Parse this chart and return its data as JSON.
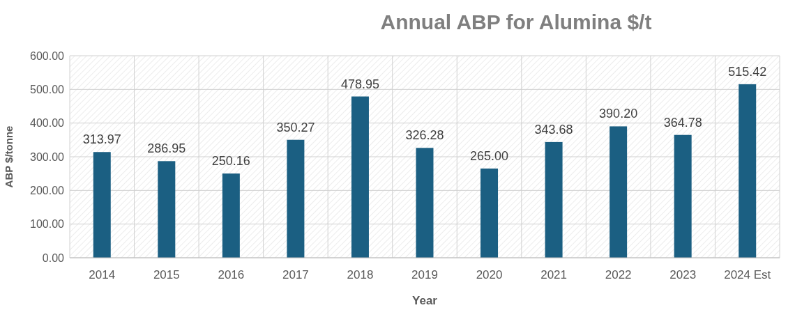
{
  "chart_data": {
    "type": "bar",
    "title": "Annual ABP for Alumina $/t",
    "xlabel": "Year",
    "ylabel": "ABP $/tonne",
    "categories": [
      "2014",
      "2015",
      "2016",
      "2017",
      "2018",
      "2019",
      "2020",
      "2021",
      "2022",
      "2023",
      "2024 Est"
    ],
    "values": [
      313.97,
      286.95,
      250.16,
      350.27,
      478.95,
      326.28,
      265.0,
      343.68,
      390.2,
      364.78,
      515.42
    ],
    "value_labels": [
      "313.97",
      "286.95",
      "250.16",
      "350.27",
      "478.95",
      "326.28",
      "265.00",
      "343.68",
      "390.20",
      "364.78",
      "515.42"
    ],
    "color": "#1b5f82",
    "ylim": [
      0,
      600
    ],
    "yticks": [
      {
        "value": 0,
        "label": "0.00"
      },
      {
        "value": 100,
        "label": "100.00"
      },
      {
        "value": 200,
        "label": "200.00"
      },
      {
        "value": 300,
        "label": "300.00"
      },
      {
        "value": 400,
        "label": "400.00"
      },
      {
        "value": 500,
        "label": "500.00"
      },
      {
        "value": 600,
        "label": "600.00"
      }
    ],
    "grid": true
  }
}
